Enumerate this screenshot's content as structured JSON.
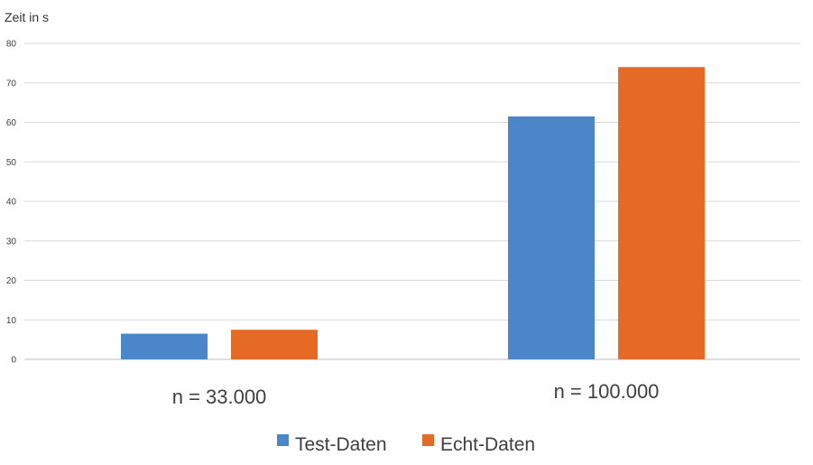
{
  "chart_data": {
    "type": "bar",
    "ylabel": "Zeit in s",
    "categories": [
      "n = 33.000",
      "n = 100.000"
    ],
    "series": [
      {
        "name": "Test-Daten",
        "color": "#4A86C8",
        "values": [
          6.5,
          61.5
        ]
      },
      {
        "name": "Echt-Daten",
        "color": "#E46A26",
        "values": [
          7.5,
          74
        ]
      }
    ],
    "ylim": [
      0,
      80
    ],
    "yticks": [
      "0",
      "10",
      "20",
      "30",
      "40",
      "50",
      "60",
      "70",
      "80"
    ],
    "grid": true,
    "legend_position": "bottom"
  }
}
